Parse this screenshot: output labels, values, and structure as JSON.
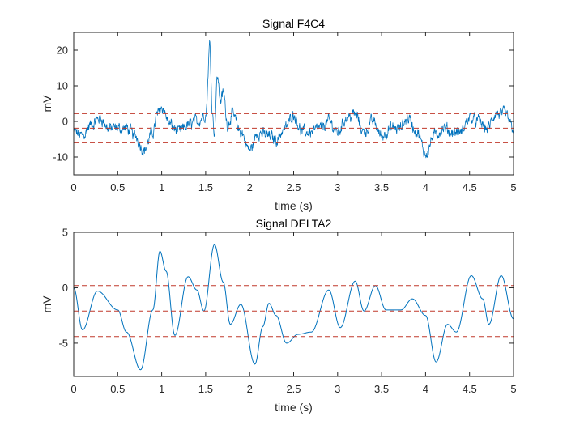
{
  "chart_data": [
    {
      "type": "line",
      "title": "Signal F4C4",
      "xlabel": "time (s)",
      "ylabel": "mV",
      "xlim": [
        0,
        5
      ],
      "ylim": [
        -15,
        25
      ],
      "xticks": [
        "0",
        "0.5",
        "1",
        "1.5",
        "2",
        "2.5",
        "3",
        "3.5",
        "4",
        "4.5",
        "5"
      ],
      "yticks": [
        "-10",
        "0",
        "10",
        "20"
      ],
      "ytick_values": [
        -10,
        0,
        10,
        20
      ],
      "series": [
        {
          "name": "F4C4",
          "color": "#0072BD",
          "style": "noisy",
          "anchors": [
            [
              0,
              -3
            ],
            [
              0.1,
              -4
            ],
            [
              0.2,
              -1
            ],
            [
              0.3,
              1
            ],
            [
              0.4,
              -2
            ],
            [
              0.5,
              -2
            ],
            [
              0.6,
              -2
            ],
            [
              0.7,
              -4
            ],
            [
              0.8,
              -8
            ],
            [
              0.9,
              -3
            ],
            [
              0.95,
              2
            ],
            [
              1.0,
              4
            ],
            [
              1.1,
              -1
            ],
            [
              1.2,
              -3
            ],
            [
              1.3,
              -1
            ],
            [
              1.4,
              0
            ],
            [
              1.5,
              2
            ],
            [
              1.55,
              22
            ],
            [
              1.57,
              5
            ],
            [
              1.6,
              -4
            ],
            [
              1.63,
              13
            ],
            [
              1.67,
              6
            ],
            [
              1.7,
              8
            ],
            [
              1.75,
              -1
            ],
            [
              1.8,
              2
            ],
            [
              1.9,
              -3
            ],
            [
              2.0,
              -8
            ],
            [
              2.1,
              -3
            ],
            [
              2.2,
              -4
            ],
            [
              2.3,
              -5
            ],
            [
              2.4,
              -2
            ],
            [
              2.5,
              2
            ],
            [
              2.6,
              -3
            ],
            [
              2.7,
              -3
            ],
            [
              2.8,
              -2
            ],
            [
              2.9,
              0
            ],
            [
              3.0,
              -3
            ],
            [
              3.1,
              1
            ],
            [
              3.2,
              2
            ],
            [
              3.3,
              -3
            ],
            [
              3.4,
              0
            ],
            [
              3.5,
              -4
            ],
            [
              3.6,
              -2
            ],
            [
              3.7,
              -2
            ],
            [
              3.8,
              1
            ],
            [
              3.9,
              -3
            ],
            [
              4.0,
              -9
            ],
            [
              4.1,
              -4
            ],
            [
              4.2,
              -2
            ],
            [
              4.3,
              -3
            ],
            [
              4.4,
              -3
            ],
            [
              4.5,
              1
            ],
            [
              4.6,
              0
            ],
            [
              4.7,
              -2
            ],
            [
              4.8,
              2
            ],
            [
              4.9,
              2
            ],
            [
              5.0,
              -2
            ]
          ]
        }
      ],
      "hlines": [
        {
          "y": 2.2,
          "color": "#C0392B",
          "style": "dashed"
        },
        {
          "y": -1.9,
          "color": "#C0392B",
          "style": "dashed"
        },
        {
          "y": -6.0,
          "color": "#C0392B",
          "style": "dashed"
        }
      ]
    },
    {
      "type": "line",
      "title": "Signal DELTA2",
      "xlabel": "time (s)",
      "ylabel": "mV",
      "xlim": [
        0,
        5
      ],
      "ylim": [
        -8,
        5
      ],
      "xticks": [
        "0",
        "0.5",
        "1",
        "1.5",
        "2",
        "2.5",
        "3",
        "3.5",
        "4",
        "4.5",
        "5"
      ],
      "yticks": [
        "-5",
        "0",
        "5"
      ],
      "ytick_values": [
        -5,
        0,
        5
      ],
      "series": [
        {
          "name": "DELTA2",
          "color": "#0072BD",
          "style": "smooth",
          "anchors": [
            [
              0,
              0
            ],
            [
              0.1,
              -3.8
            ],
            [
              0.27,
              -0.3
            ],
            [
              0.5,
              -2.0
            ],
            [
              0.6,
              -4.0
            ],
            [
              0.76,
              -7.4
            ],
            [
              0.9,
              -2.0
            ],
            [
              0.98,
              3.3
            ],
            [
              1.05,
              1.5
            ],
            [
              1.15,
              -4.3
            ],
            [
              1.3,
              1.0
            ],
            [
              1.4,
              -0.2
            ],
            [
              1.48,
              -2.1
            ],
            [
              1.6,
              3.9
            ],
            [
              1.7,
              0.5
            ],
            [
              1.78,
              -3.3
            ],
            [
              1.9,
              -1.5
            ],
            [
              2.06,
              -6.9
            ],
            [
              2.15,
              -3.5
            ],
            [
              2.22,
              -1.4
            ],
            [
              2.3,
              -2.5
            ],
            [
              2.42,
              -5.0
            ],
            [
              2.55,
              -4.2
            ],
            [
              2.7,
              -4.0
            ],
            [
              2.9,
              -0.2
            ],
            [
              3.03,
              -3.6
            ],
            [
              3.2,
              0.6
            ],
            [
              3.3,
              -2.1
            ],
            [
              3.43,
              0.2
            ],
            [
              3.55,
              -2.0
            ],
            [
              3.72,
              -2.0
            ],
            [
              3.85,
              -1.0
            ],
            [
              4.0,
              -2.5
            ],
            [
              4.12,
              -6.7
            ],
            [
              4.25,
              -3.3
            ],
            [
              4.35,
              -4.0
            ],
            [
              4.52,
              1.1
            ],
            [
              4.65,
              -1.0
            ],
            [
              4.72,
              -3.3
            ],
            [
              4.86,
              1.1
            ],
            [
              5.0,
              -2.8
            ]
          ]
        }
      ],
      "hlines": [
        {
          "y": 0.2,
          "color": "#C0392B",
          "style": "dashed"
        },
        {
          "y": -2.1,
          "color": "#C0392B",
          "style": "dashed"
        },
        {
          "y": -4.4,
          "color": "#C0392B",
          "style": "dashed"
        }
      ]
    }
  ]
}
